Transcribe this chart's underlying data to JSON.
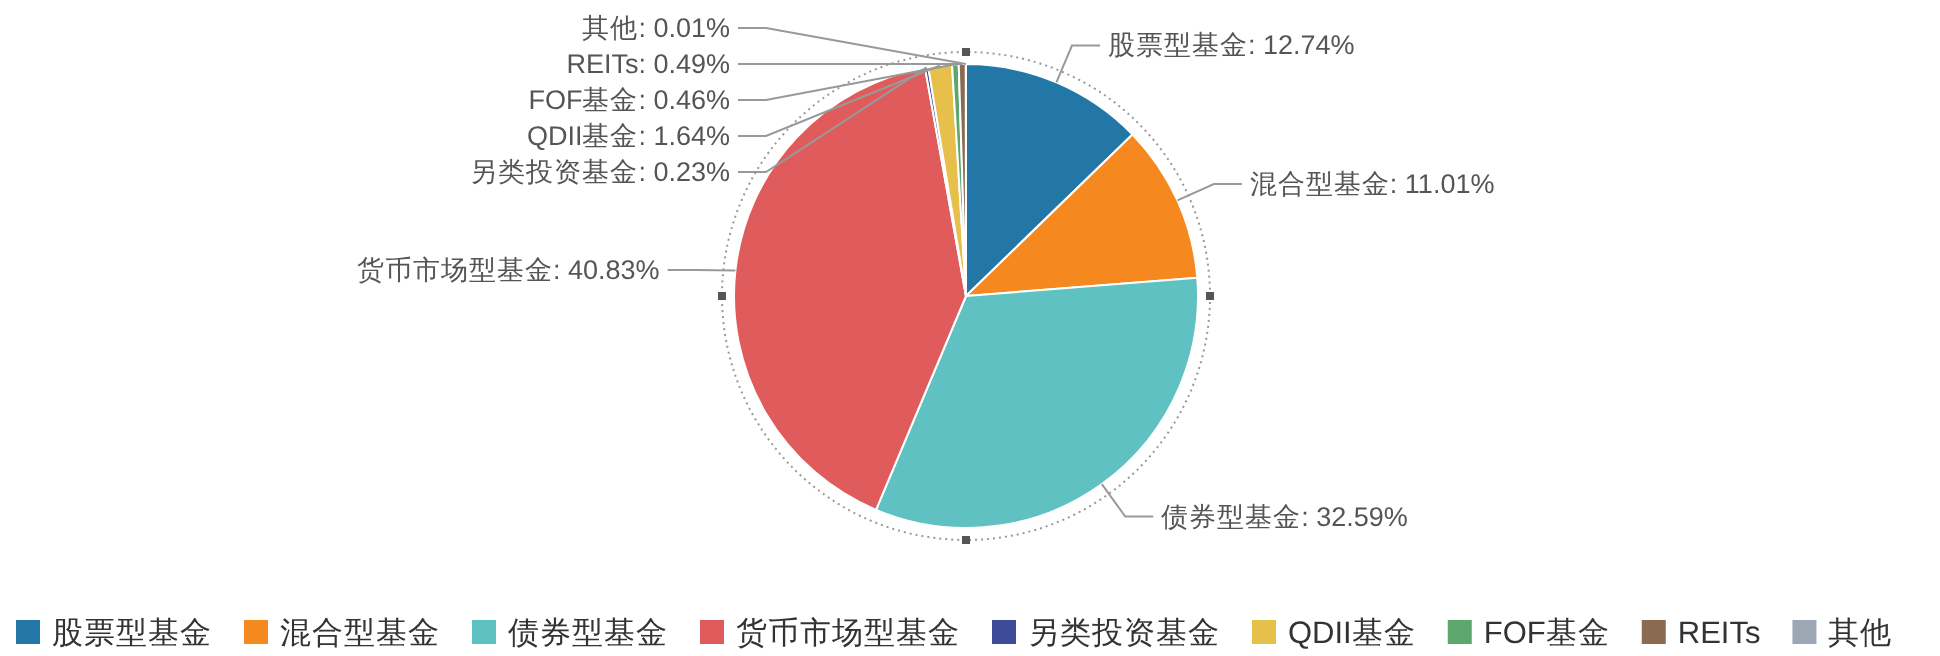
{
  "chart_data": {
    "type": "pie",
    "categories": [
      "股票型基金",
      "混合型基金",
      "债券型基金",
      "货币市场型基金",
      "另类投资基金",
      "QDII基金",
      "FOF基金",
      "REITs",
      "其他"
    ],
    "values": [
      12.74,
      11.01,
      32.59,
      40.83,
      0.23,
      1.64,
      0.46,
      0.49,
      0.01
    ],
    "colors": [
      "#2277a6",
      "#f5881f",
      "#5fc1c1",
      "#e05b5c",
      "#3d4b98",
      "#e7c04b",
      "#5ca76c",
      "#8b6a52",
      "#9ba7b5"
    ],
    "value_labels": [
      ": 12.74%",
      ": 11.01%",
      ": 32.59%",
      ": 40.83%",
      ": 0.23%",
      ": 1.64%",
      ": 0.46%",
      ": 0.49%",
      ": 0.01%"
    ],
    "legend": "bottom"
  }
}
